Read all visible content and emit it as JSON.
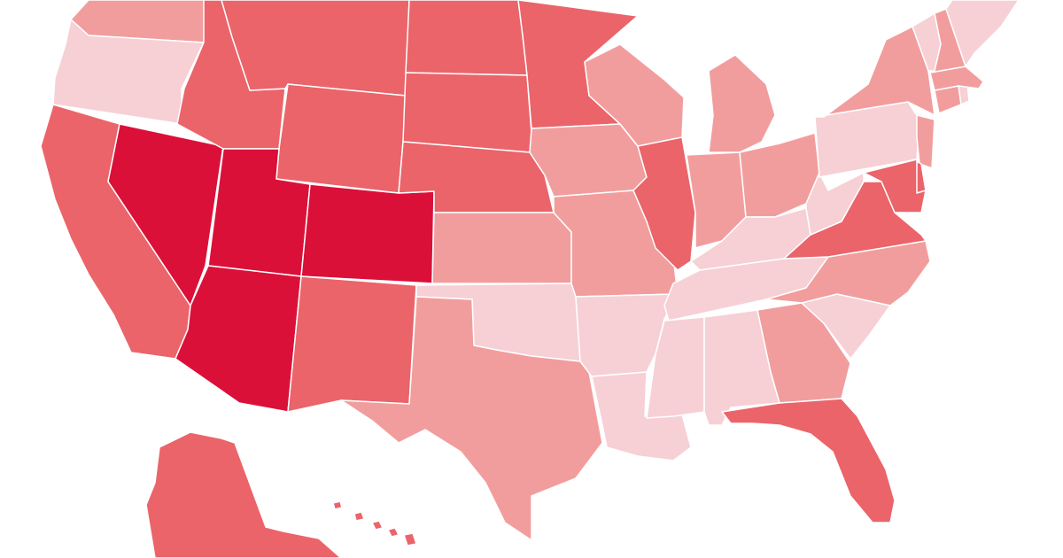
{
  "map": {
    "type": "choropleth",
    "region": "United States",
    "background": "#ffffff",
    "border_color": "#ffffff",
    "palette": {
      "level_1": "#f6d0d5",
      "level_2": "#f29d9d",
      "level_3": "#ea646a",
      "level_4": "#db1039"
    },
    "states": [
      {
        "id": "WA",
        "level": 2
      },
      {
        "id": "OR",
        "level": 1
      },
      {
        "id": "CA",
        "level": 3
      },
      {
        "id": "NV",
        "level": 4
      },
      {
        "id": "ID",
        "level": 3
      },
      {
        "id": "MT",
        "level": 3
      },
      {
        "id": "WY",
        "level": 3
      },
      {
        "id": "UT",
        "level": 4
      },
      {
        "id": "CO",
        "level": 4
      },
      {
        "id": "AZ",
        "level": 4
      },
      {
        "id": "NM",
        "level": 3
      },
      {
        "id": "ND",
        "level": 3
      },
      {
        "id": "SD",
        "level": 3
      },
      {
        "id": "NE",
        "level": 3
      },
      {
        "id": "KS",
        "level": 2
      },
      {
        "id": "OK",
        "level": 1
      },
      {
        "id": "TX",
        "level": 2
      },
      {
        "id": "MN",
        "level": 3
      },
      {
        "id": "IA",
        "level": 2
      },
      {
        "id": "MO",
        "level": 2
      },
      {
        "id": "AR",
        "level": 1
      },
      {
        "id": "LA",
        "level": 1
      },
      {
        "id": "WI",
        "level": 2
      },
      {
        "id": "IL",
        "level": 3
      },
      {
        "id": "MI",
        "level": 2
      },
      {
        "id": "IN",
        "level": 2
      },
      {
        "id": "OH",
        "level": 2
      },
      {
        "id": "KY",
        "level": 1
      },
      {
        "id": "TN",
        "level": 1
      },
      {
        "id": "MS",
        "level": 1
      },
      {
        "id": "AL",
        "level": 1
      },
      {
        "id": "GA",
        "level": 2
      },
      {
        "id": "FL",
        "level": 3
      },
      {
        "id": "SC",
        "level": 1
      },
      {
        "id": "NC",
        "level": 2
      },
      {
        "id": "VA",
        "level": 3
      },
      {
        "id": "WV",
        "level": 1
      },
      {
        "id": "PA",
        "level": 1
      },
      {
        "id": "NY",
        "level": 2
      },
      {
        "id": "NJ",
        "level": 2
      },
      {
        "id": "DE",
        "level": 3
      },
      {
        "id": "MD",
        "level": 3
      },
      {
        "id": "CT",
        "level": 2
      },
      {
        "id": "RI",
        "level": 1
      },
      {
        "id": "MA",
        "level": 2
      },
      {
        "id": "VT",
        "level": 1
      },
      {
        "id": "NH",
        "level": 2
      },
      {
        "id": "ME",
        "level": 1
      },
      {
        "id": "AK",
        "level": 3
      },
      {
        "id": "HI",
        "level": 3
      }
    ]
  }
}
